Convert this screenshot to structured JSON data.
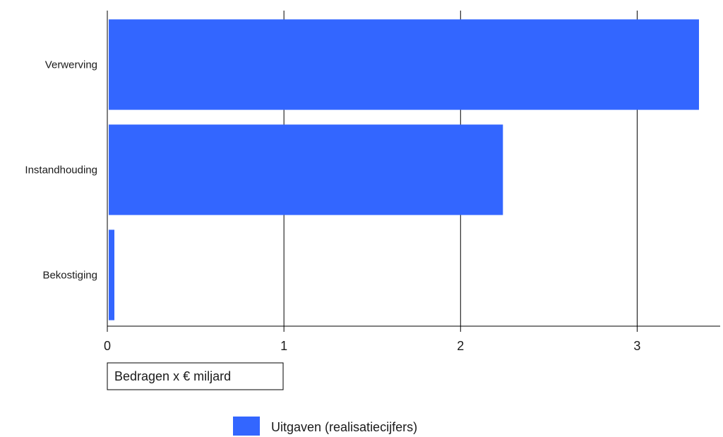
{
  "chart_data": {
    "type": "bar",
    "orientation": "horizontal",
    "categories": [
      "Verwerving",
      "Instandhouding",
      "Bekostiging"
    ],
    "series": [
      {
        "name": "Uitgaven (realisatiecijfers)",
        "values": [
          3.35,
          2.24,
          0.04
        ],
        "color": "#3366ff"
      }
    ],
    "xlabel": "Bedragen x € miljard",
    "ylabel": "",
    "xlim": [
      0,
      3.47
    ],
    "xticks": [
      "0",
      "1",
      "2",
      "3"
    ],
    "grid": true,
    "legend_position": "bottom-center"
  }
}
